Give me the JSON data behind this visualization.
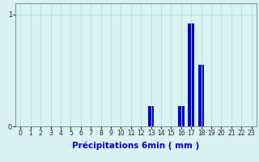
{
  "xlabel": "Précipitations 6min ( mm )",
  "background_color": "#d9f2f2",
  "bar_color": "#0000cc",
  "ylim": [
    0,
    1.1
  ],
  "yticks": [
    0,
    1
  ],
  "xlim": [
    -0.5,
    23.5
  ],
  "xticks": [
    0,
    1,
    2,
    3,
    4,
    5,
    6,
    7,
    8,
    9,
    10,
    11,
    12,
    13,
    14,
    15,
    16,
    17,
    18,
    19,
    20,
    21,
    22,
    23
  ],
  "values": [
    0,
    0,
    0,
    0,
    0,
    0,
    0,
    0,
    0,
    0,
    0,
    0,
    0,
    0.18,
    0,
    0,
    0.18,
    0.92,
    0.55,
    0,
    0,
    0,
    0,
    0
  ],
  "grid_color": "#b8dede",
  "axis_color": "#888888",
  "tick_fontsize": 5.5,
  "xlabel_fontsize": 7.5
}
